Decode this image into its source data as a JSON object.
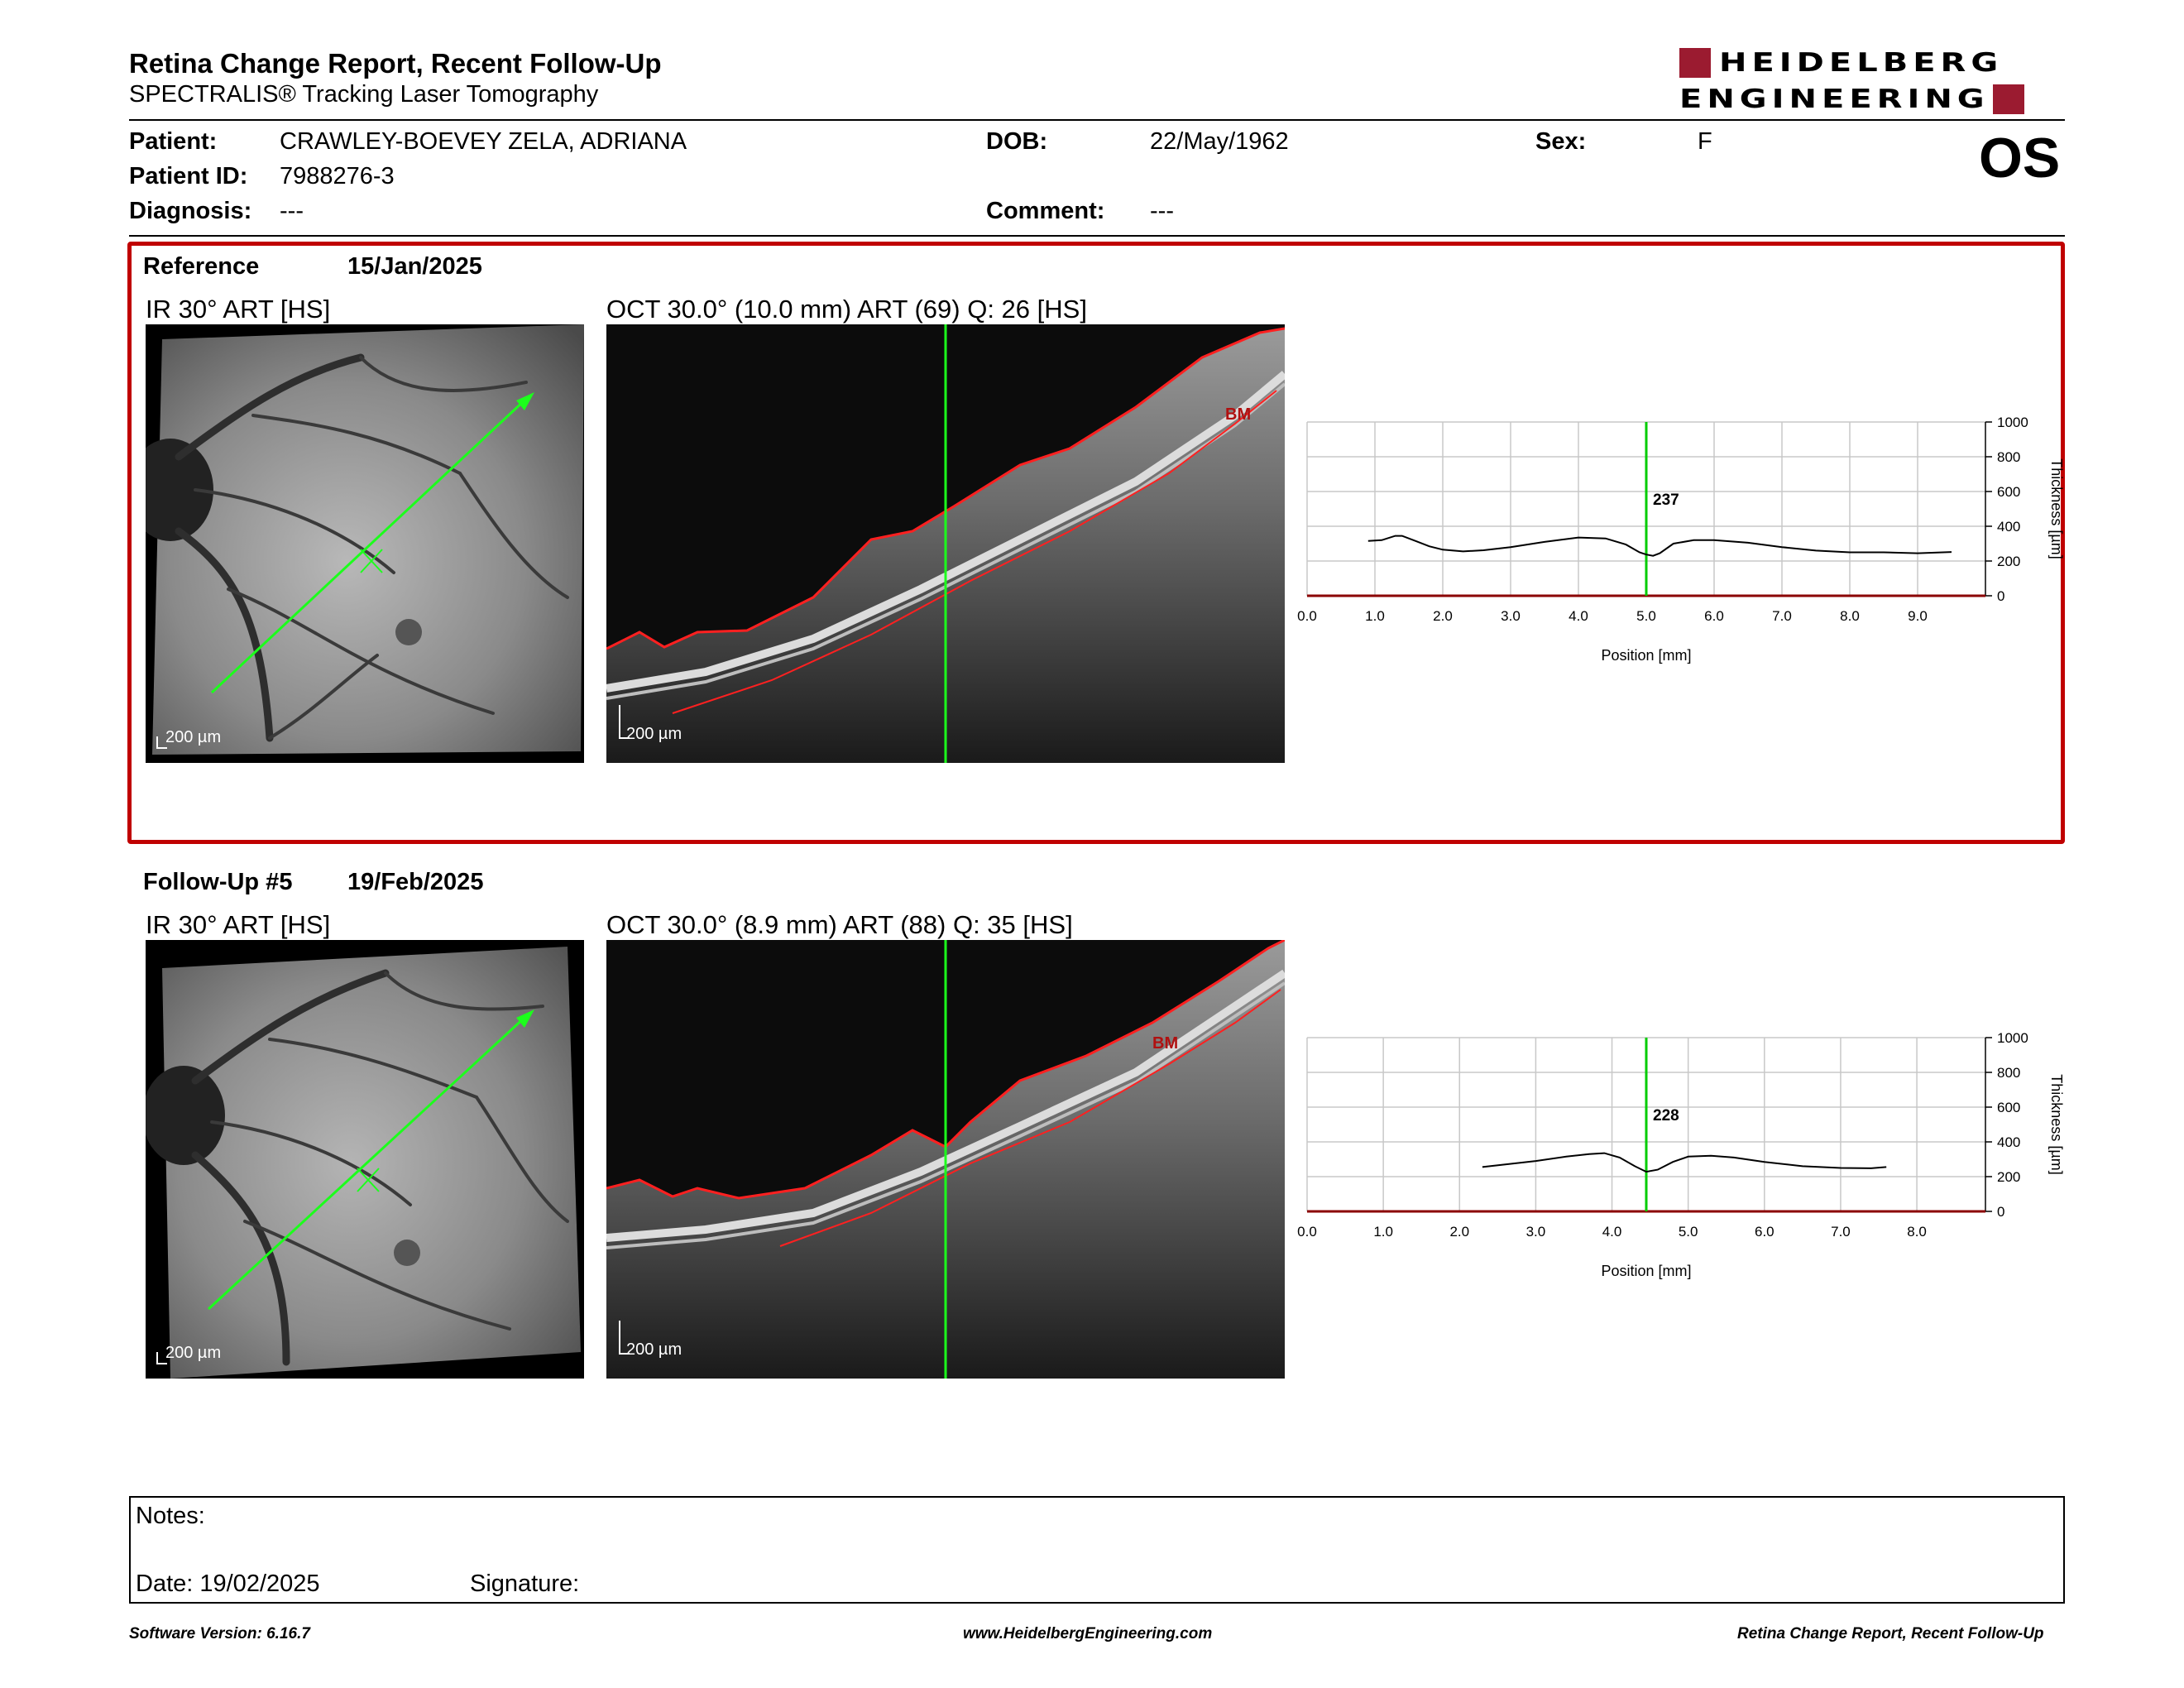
{
  "header": {
    "title": "Retina Change Report, Recent Follow-Up",
    "subtitle": "SPECTRALIS® Tracking Laser Tomography",
    "logo_line1": "HEIDELBERG",
    "logo_line2": "ENGINEERING",
    "eye": "OS"
  },
  "patient": {
    "name_label": "Patient:",
    "name": "CRAWLEY-BOEVEY ZELA, ADRIANA",
    "id_label": "Patient ID:",
    "id": "7988276-3",
    "diagnosis_label": "Diagnosis:",
    "diagnosis": "---",
    "dob_label": "DOB:",
    "dob": "22/May/1962",
    "comment_label": "Comment:",
    "comment": "---",
    "sex_label": "Sex:",
    "sex": "F"
  },
  "reference": {
    "label": "Reference",
    "date": "15/Jan/2025",
    "ir_title": "IR 30° ART [HS]",
    "oct_title": "OCT 30.0° (10.0 mm) ART (69) Q: 26 [HS]",
    "scale": "200 µm",
    "bm_label": "BM"
  },
  "followup": {
    "label": "Follow-Up #5",
    "date": "19/Feb/2025",
    "ir_title": "IR 30° ART [HS]",
    "oct_title": "OCT 30.0° (8.9 mm) ART (88) Q: 35 [HS]",
    "scale": "200 µm",
    "bm_label": "BM"
  },
  "chart_data": [
    {
      "type": "line",
      "title": "",
      "xlabel": "Position [mm]",
      "ylabel": "Thickness [µm]",
      "xlim": [
        0,
        10
      ],
      "ylim": [
        0,
        1000
      ],
      "x_ticks": [
        "0.0",
        "1.0",
        "2.0",
        "3.0",
        "4.0",
        "5.0",
        "6.0",
        "7.0",
        "8.0",
        "9.0"
      ],
      "y_ticks": [
        "0",
        "200",
        "400",
        "600",
        "800",
        "1000"
      ],
      "marker_x": 5.0,
      "marker_label": "237",
      "x": [
        0.9,
        1.1,
        1.3,
        1.4,
        1.6,
        1.8,
        2.0,
        2.3,
        2.6,
        3.0,
        3.5,
        4.0,
        4.4,
        4.7,
        4.9,
        5.0,
        5.1,
        5.2,
        5.4,
        5.7,
        6.0,
        6.5,
        7.0,
        7.5,
        8.0,
        8.5,
        9.0,
        9.5
      ],
      "y": [
        315,
        320,
        345,
        345,
        315,
        285,
        265,
        255,
        262,
        280,
        310,
        335,
        330,
        295,
        250,
        237,
        230,
        245,
        300,
        320,
        320,
        305,
        280,
        260,
        250,
        250,
        245,
        252
      ],
      "grid": true,
      "line_color": "#000000",
      "marker_color": "#00cc00"
    },
    {
      "type": "line",
      "title": "",
      "xlabel": "Position [mm]",
      "ylabel": "Thickness [µm]",
      "xlim": [
        0,
        8.9
      ],
      "ylim": [
        0,
        1000
      ],
      "x_ticks": [
        "0.0",
        "1.0",
        "2.0",
        "3.0",
        "4.0",
        "5.0",
        "6.0",
        "7.0",
        "8.0"
      ],
      "y_ticks": [
        "0",
        "200",
        "400",
        "600",
        "800",
        "1000"
      ],
      "marker_x": 4.45,
      "marker_label": "228",
      "x": [
        2.3,
        2.6,
        3.0,
        3.4,
        3.7,
        3.9,
        4.1,
        4.3,
        4.45,
        4.6,
        4.8,
        5.0,
        5.3,
        5.6,
        6.0,
        6.5,
        7.0,
        7.4,
        7.6
      ],
      "y": [
        255,
        270,
        290,
        315,
        330,
        335,
        310,
        260,
        228,
        240,
        285,
        315,
        320,
        310,
        285,
        260,
        250,
        248,
        255
      ],
      "grid": true,
      "line_color": "#000000",
      "marker_color": "#00cc00"
    }
  ],
  "notes": {
    "notes_label": "Notes:",
    "date_label": "Date: 19/02/2025",
    "signature_label": "Signature:"
  },
  "footer": {
    "version": "Software Version: 6.16.7",
    "url": "www.HeidelbergEngineering.com",
    "report": "Retina Change Report, Recent Follow-Up"
  }
}
